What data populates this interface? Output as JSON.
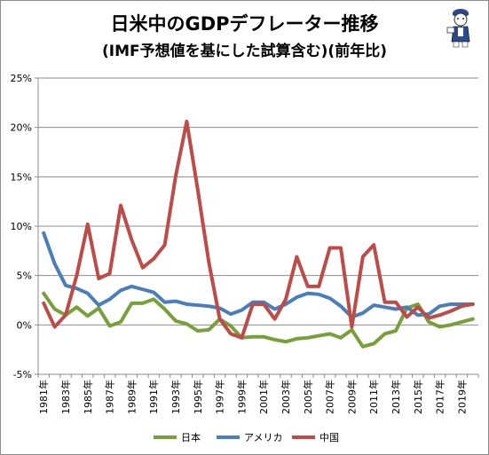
{
  "chart_data": {
    "type": "line",
    "title": "日米中のGDPデフレーター推移",
    "subtitle": "(IMF予想値を基にした試算含む)(前年比)",
    "years": [
      1981,
      1982,
      1983,
      1984,
      1985,
      1986,
      1987,
      1988,
      1989,
      1990,
      1991,
      1992,
      1993,
      1994,
      1995,
      1996,
      1997,
      1998,
      1999,
      2000,
      2001,
      2002,
      2003,
      2004,
      2005,
      2006,
      2007,
      2008,
      2009,
      2010,
      2011,
      2012,
      2013,
      2014,
      2015,
      2016,
      2017,
      2018,
      2019,
      2020
    ],
    "x_tick_labels": [
      "1981年",
      "1983年",
      "1985年",
      "1987年",
      "1989年",
      "1991年",
      "1993年",
      "1995年",
      "1997年",
      "1999年",
      "2001年",
      "2003年",
      "2005年",
      "2007年",
      "2009年",
      "2011年",
      "2013年",
      "2015年",
      "2017年",
      "2019年"
    ],
    "y_tick_labels": [
      "-5%",
      "0%",
      "5%",
      "10%",
      "15%",
      "20%",
      "25%"
    ],
    "ylim": [
      -5,
      25
    ],
    "y_unit": "%",
    "grid": true,
    "legend_position": "bottom",
    "series": [
      {
        "name": "日本",
        "color": "#77a03a",
        "values": [
          3.2,
          1.6,
          1.0,
          1.8,
          0.9,
          1.7,
          -0.1,
          0.3,
          2.2,
          2.2,
          2.6,
          1.6,
          0.4,
          0.1,
          -0.6,
          -0.5,
          0.6,
          -0.1,
          -1.3,
          -1.2,
          -1.2,
          -1.5,
          -1.7,
          -1.4,
          -1.3,
          -1.1,
          -0.9,
          -1.3,
          -0.5,
          -2.2,
          -1.9,
          -0.9,
          -0.6,
          1.7,
          2.1,
          0.3,
          -0.2,
          0.0,
          0.3,
          0.6
        ]
      },
      {
        "name": "アメリカ",
        "color": "#4a7ebb",
        "values": [
          9.3,
          6.2,
          4.0,
          3.7,
          3.2,
          2.0,
          2.6,
          3.5,
          3.9,
          3.6,
          3.3,
          2.3,
          2.4,
          2.1,
          2.0,
          1.9,
          1.7,
          1.1,
          1.5,
          2.3,
          2.3,
          1.6,
          2.1,
          2.8,
          3.2,
          3.1,
          2.7,
          1.9,
          0.8,
          1.2,
          2.0,
          1.8,
          1.6,
          1.8,
          1.0,
          1.1,
          1.9,
          2.1,
          2.1,
          2.1
        ]
      },
      {
        "name": "中国",
        "color": "#be4b48",
        "values": [
          2.2,
          -0.2,
          1.0,
          5.0,
          10.2,
          4.7,
          5.2,
          12.1,
          8.6,
          5.8,
          6.7,
          8.1,
          15.1,
          20.6,
          13.7,
          6.4,
          0.6,
          -0.9,
          -1.3,
          2.1,
          2.1,
          0.6,
          2.6,
          6.9,
          3.9,
          3.9,
          7.8,
          7.8,
          -0.2,
          6.9,
          8.1,
          2.3,
          2.3,
          0.8,
          1.8,
          0.7,
          1.0,
          1.4,
          1.9,
          2.1
        ]
      }
    ]
  }
}
